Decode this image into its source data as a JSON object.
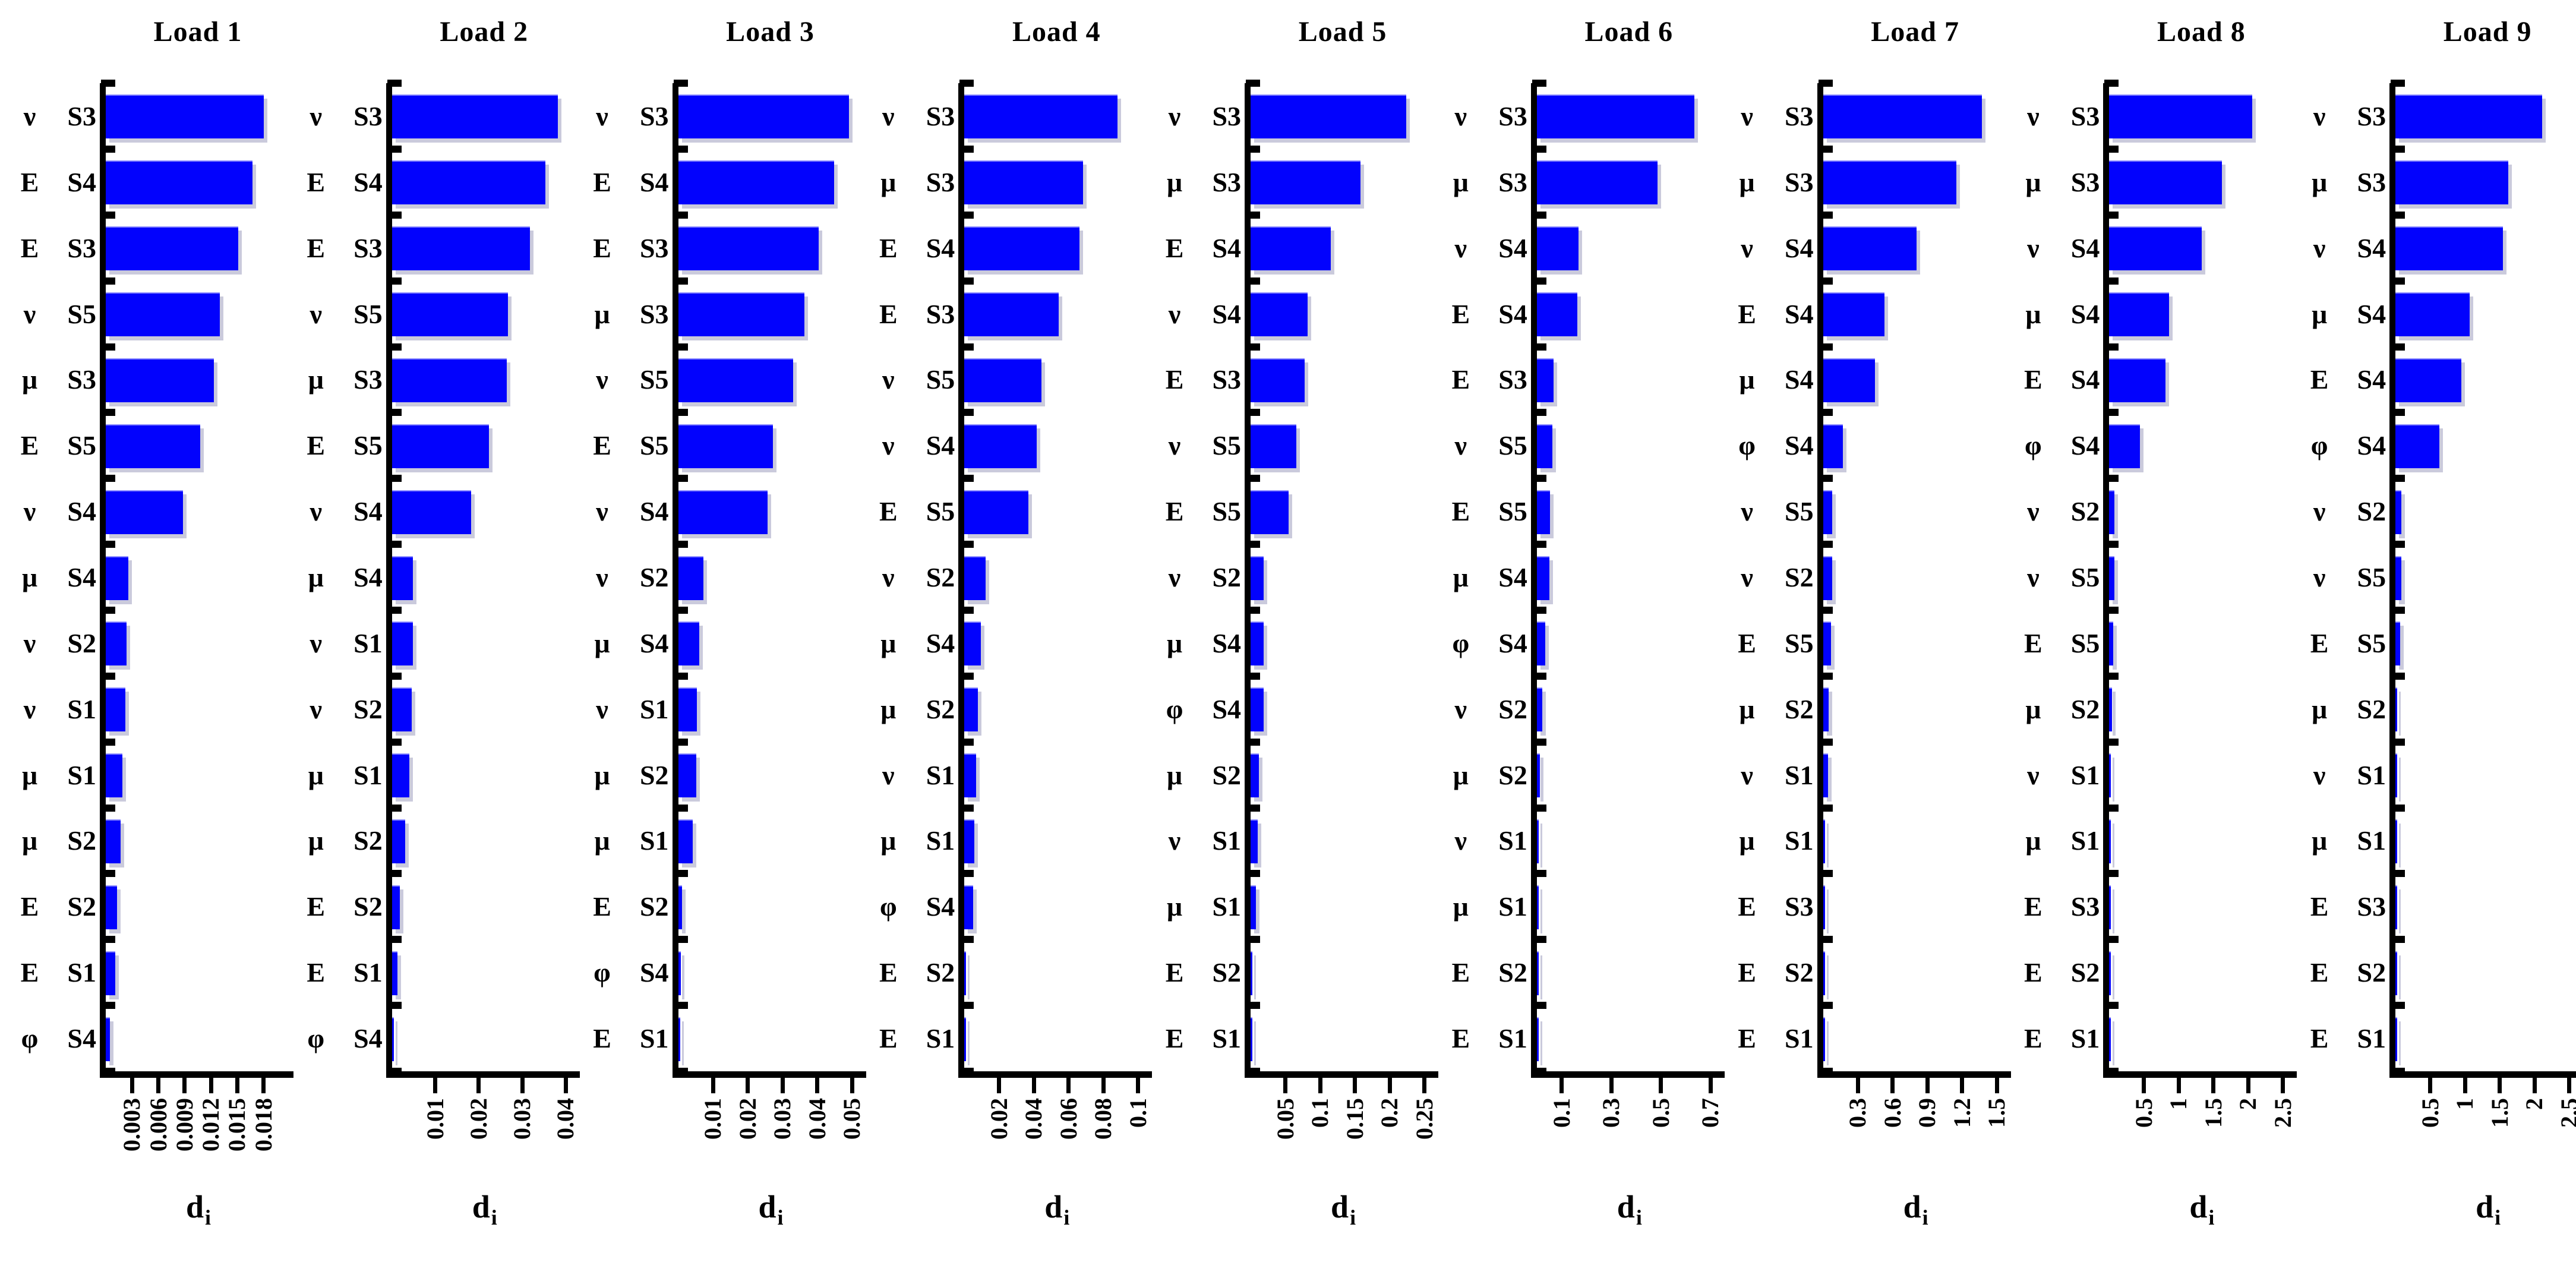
{
  "figure_title": "",
  "axis_color": "#000000",
  "bar_color": "#0202fd",
  "bar_shadow_color": "rgba(150,150,185,0.5)",
  "xlabel": {
    "base": "d",
    "sub": "i"
  },
  "chart_data": {
    "type": "bar",
    "orientation": "horizontal",
    "grid": false,
    "legend": false,
    "value_axis_label": "d_i",
    "panels": [
      {
        "title": "Load 1",
        "xlim": [
          0,
          0.021
        ],
        "xticks": [
          {
            "label": "0.003",
            "value": 0.003
          },
          {
            "label": "0.006",
            "value": 0.006
          },
          {
            "label": "0.009",
            "value": 0.009
          },
          {
            "label": "0.012",
            "value": 0.012
          },
          {
            "label": "0.015",
            "value": 0.015
          },
          {
            "label": "0.018",
            "value": 0.018
          }
        ],
        "bars": [
          {
            "param": "ν",
            "site": "S3",
            "value": 0.018
          },
          {
            "param": "E",
            "site": "S4",
            "value": 0.0167
          },
          {
            "param": "E",
            "site": "S3",
            "value": 0.0151
          },
          {
            "param": "ν",
            "site": "S5",
            "value": 0.013
          },
          {
            "param": "μ",
            "site": "S3",
            "value": 0.0123
          },
          {
            "param": "E",
            "site": "S5",
            "value": 0.0108
          },
          {
            "param": "ν",
            "site": "S4",
            "value": 0.0088
          },
          {
            "param": "μ",
            "site": "S4",
            "value": 0.0026
          },
          {
            "param": "ν",
            "site": "S2",
            "value": 0.0024
          },
          {
            "param": "ν",
            "site": "S1",
            "value": 0.0022
          },
          {
            "param": "μ",
            "site": "S1",
            "value": 0.0019
          },
          {
            "param": "μ",
            "site": "S2",
            "value": 0.0017
          },
          {
            "param": "E",
            "site": "S2",
            "value": 0.0013
          },
          {
            "param": "E",
            "site": "S1",
            "value": 0.0011
          },
          {
            "param": "φ",
            "site": "S4",
            "value": 0.0005
          }
        ]
      },
      {
        "title": "Load 2",
        "xlim": [
          0,
          0.0424
        ],
        "xticks": [
          {
            "label": "0.01",
            "value": 0.01
          },
          {
            "label": "0.02",
            "value": 0.02
          },
          {
            "label": "0.03",
            "value": 0.03
          },
          {
            "label": "0.04",
            "value": 0.04
          }
        ],
        "bars": [
          {
            "param": "ν",
            "site": "S3",
            "value": 0.0382
          },
          {
            "param": "E",
            "site": "S4",
            "value": 0.0353
          },
          {
            "param": "E",
            "site": "S3",
            "value": 0.0317
          },
          {
            "param": "ν",
            "site": "S5",
            "value": 0.0267
          },
          {
            "param": "μ",
            "site": "S3",
            "value": 0.0264
          },
          {
            "param": "E",
            "site": "S5",
            "value": 0.0223
          },
          {
            "param": "ν",
            "site": "S4",
            "value": 0.0182
          },
          {
            "param": "μ",
            "site": "S4",
            "value": 0.0048
          },
          {
            "param": "ν",
            "site": "S1",
            "value": 0.0048
          },
          {
            "param": "ν",
            "site": "S2",
            "value": 0.0046
          },
          {
            "param": "μ",
            "site": "S1",
            "value": 0.004
          },
          {
            "param": "μ",
            "site": "S2",
            "value": 0.0031
          },
          {
            "param": "E",
            "site": "S2",
            "value": 0.0018
          },
          {
            "param": "E",
            "site": "S1",
            "value": 0.0012
          },
          {
            "param": "φ",
            "site": "S4",
            "value": 0.0004
          }
        ]
      },
      {
        "title": "Load 3",
        "xlim": [
          0,
          0.053
        ],
        "xticks": [
          {
            "label": "0.01",
            "value": 0.01
          },
          {
            "label": "0.02",
            "value": 0.02
          },
          {
            "label": "0.03",
            "value": 0.03
          },
          {
            "label": "0.04",
            "value": 0.04
          },
          {
            "label": "0.05",
            "value": 0.05
          }
        ],
        "bars": [
          {
            "param": "ν",
            "site": "S3",
            "value": 0.0491
          },
          {
            "param": "E",
            "site": "S4",
            "value": 0.0448
          },
          {
            "param": "E",
            "site": "S3",
            "value": 0.0404
          },
          {
            "param": "μ",
            "site": "S3",
            "value": 0.0364
          },
          {
            "param": "ν",
            "site": "S5",
            "value": 0.033
          },
          {
            "param": "E",
            "site": "S5",
            "value": 0.0273
          },
          {
            "param": "ν",
            "site": "S4",
            "value": 0.0257
          },
          {
            "param": "ν",
            "site": "S2",
            "value": 0.0072
          },
          {
            "param": "μ",
            "site": "S4",
            "value": 0.006
          },
          {
            "param": "ν",
            "site": "S1",
            "value": 0.0053
          },
          {
            "param": "μ",
            "site": "S2",
            "value": 0.0052
          },
          {
            "param": "μ",
            "site": "S1",
            "value": 0.0042
          },
          {
            "param": "E",
            "site": "S2",
            "value": 0.0011
          },
          {
            "param": "φ",
            "site": "S4",
            "value": 0.0008
          },
          {
            "param": "E",
            "site": "S1",
            "value": 0.0003
          }
        ]
      },
      {
        "title": "Load 4",
        "xlim": [
          0,
          0.106
        ],
        "xticks": [
          {
            "label": "0.02",
            "value": 0.02
          },
          {
            "label": "0.04",
            "value": 0.04
          },
          {
            "label": "0.06",
            "value": 0.06
          },
          {
            "label": "0.08",
            "value": 0.08
          },
          {
            "label": "0.1",
            "value": 0.1
          }
        ],
        "bars": [
          {
            "param": "ν",
            "site": "S3",
            "value": 0.0882
          },
          {
            "param": "μ",
            "site": "S3",
            "value": 0.0684
          },
          {
            "param": "E",
            "site": "S4",
            "value": 0.0664
          },
          {
            "param": "E",
            "site": "S3",
            "value": 0.0543
          },
          {
            "param": "ν",
            "site": "S5",
            "value": 0.0443
          },
          {
            "param": "ν",
            "site": "S4",
            "value": 0.0416
          },
          {
            "param": "E",
            "site": "S5",
            "value": 0.0369
          },
          {
            "param": "ν",
            "site": "S2",
            "value": 0.0123
          },
          {
            "param": "μ",
            "site": "S4",
            "value": 0.0095
          },
          {
            "param": "μ",
            "site": "S2",
            "value": 0.0078
          },
          {
            "param": "ν",
            "site": "S1",
            "value": 0.0067
          },
          {
            "param": "μ",
            "site": "S1",
            "value": 0.0056
          },
          {
            "param": "φ",
            "site": "S4",
            "value": 0.005
          },
          {
            "param": "E",
            "site": "S2",
            "value": 0.0006
          },
          {
            "param": "E",
            "site": "S1",
            "value": 0.0003
          }
        ]
      },
      {
        "title": "Load 5",
        "xlim": [
          0,
          0.265
        ],
        "xticks": [
          {
            "label": "0.05",
            "value": 0.05
          },
          {
            "label": "0.1",
            "value": 0.1
          },
          {
            "label": "0.15",
            "value": 0.15
          },
          {
            "label": "0.2",
            "value": 0.2
          },
          {
            "label": "0.25",
            "value": 0.25
          }
        ],
        "bars": [
          {
            "param": "ν",
            "site": "S3",
            "value": 0.224
          },
          {
            "param": "μ",
            "site": "S3",
            "value": 0.158
          },
          {
            "param": "E",
            "site": "S4",
            "value": 0.115
          },
          {
            "param": "ν",
            "site": "S4",
            "value": 0.082
          },
          {
            "param": "E",
            "site": "S3",
            "value": 0.078
          },
          {
            "param": "ν",
            "site": "S5",
            "value": 0.066
          },
          {
            "param": "E",
            "site": "S5",
            "value": 0.055
          },
          {
            "param": "ν",
            "site": "S2",
            "value": 0.019
          },
          {
            "param": "μ",
            "site": "S4",
            "value": 0.019
          },
          {
            "param": "φ",
            "site": "S4",
            "value": 0.019
          },
          {
            "param": "μ",
            "site": "S2",
            "value": 0.012
          },
          {
            "param": "ν",
            "site": "S1",
            "value": 0.01
          },
          {
            "param": "μ",
            "site": "S1",
            "value": 0.008
          },
          {
            "param": "E",
            "site": "S2",
            "value": 0.002
          },
          {
            "param": "E",
            "site": "S1",
            "value": 0.001
          }
        ]
      },
      {
        "title": "Load 6",
        "xlim": [
          0,
          0.742
        ],
        "xticks": [
          {
            "label": "0.1",
            "value": 0.1
          },
          {
            "label": "0.3",
            "value": 0.3
          },
          {
            "label": "0.5",
            "value": 0.5
          },
          {
            "label": "0.7",
            "value": 0.7
          }
        ],
        "bars": [
          {
            "param": "ν",
            "site": "S3",
            "value": 0.634
          },
          {
            "param": "μ",
            "site": "S3",
            "value": 0.486
          },
          {
            "param": "ν",
            "site": "S4",
            "value": 0.167
          },
          {
            "param": "E",
            "site": "S4",
            "value": 0.164
          },
          {
            "param": "E",
            "site": "S3",
            "value": 0.068
          },
          {
            "param": "ν",
            "site": "S5",
            "value": 0.063
          },
          {
            "param": "E",
            "site": "S5",
            "value": 0.053
          },
          {
            "param": "μ",
            "site": "S4",
            "value": 0.051
          },
          {
            "param": "φ",
            "site": "S4",
            "value": 0.035
          },
          {
            "param": "ν",
            "site": "S2",
            "value": 0.023
          },
          {
            "param": "μ",
            "site": "S2",
            "value": 0.012
          },
          {
            "param": "ν",
            "site": "S1",
            "value": 0.008
          },
          {
            "param": "μ",
            "site": "S1",
            "value": 0.004
          },
          {
            "param": "E",
            "site": "S2",
            "value": 0.003
          },
          {
            "param": "E",
            "site": "S1",
            "value": 0.002
          }
        ]
      },
      {
        "title": "Load 7",
        "xlim": [
          0,
          1.59
        ],
        "xticks": [
          {
            "label": "0.3",
            "value": 0.3
          },
          {
            "label": "0.6",
            "value": 0.6
          },
          {
            "label": "0.9",
            "value": 0.9
          },
          {
            "label": "1.2",
            "value": 1.2
          },
          {
            "label": "1.5",
            "value": 1.5
          }
        ],
        "bars": [
          {
            "param": "ν",
            "site": "S3",
            "value": 1.37
          },
          {
            "param": "μ",
            "site": "S3",
            "value": 1.15
          },
          {
            "param": "ν",
            "site": "S4",
            "value": 0.81
          },
          {
            "param": "E",
            "site": "S4",
            "value": 0.53
          },
          {
            "param": "μ",
            "site": "S4",
            "value": 0.45
          },
          {
            "param": "φ",
            "site": "S4",
            "value": 0.17
          },
          {
            "param": "ν",
            "site": "S5",
            "value": 0.079
          },
          {
            "param": "ν",
            "site": "S2",
            "value": 0.079
          },
          {
            "param": "E",
            "site": "S5",
            "value": 0.067
          },
          {
            "param": "μ",
            "site": "S2",
            "value": 0.05
          },
          {
            "param": "ν",
            "site": "S1",
            "value": 0.042
          },
          {
            "param": "μ",
            "site": "S1",
            "value": 0.017
          },
          {
            "param": "E",
            "site": "S3",
            "value": 0.014
          },
          {
            "param": "E",
            "site": "S2",
            "value": 0.007
          },
          {
            "param": "E",
            "site": "S1",
            "value": 0.004
          }
        ]
      },
      {
        "title": "Load 8",
        "xlim": [
          0,
          2.65
        ],
        "xticks": [
          {
            "label": "0.5",
            "value": 0.5
          },
          {
            "label": "1",
            "value": 1
          },
          {
            "label": "1.5",
            "value": 1.5
          },
          {
            "label": "2",
            "value": 2
          },
          {
            "label": "2.5",
            "value": 2.5
          }
        ],
        "bars": [
          {
            "param": "ν",
            "site": "S3",
            "value": 2.06
          },
          {
            "param": "μ",
            "site": "S3",
            "value": 1.62
          },
          {
            "param": "ν",
            "site": "S4",
            "value": 1.33
          },
          {
            "param": "μ",
            "site": "S4",
            "value": 0.86
          },
          {
            "param": "E",
            "site": "S4",
            "value": 0.81
          },
          {
            "param": "φ",
            "site": "S4",
            "value": 0.44
          },
          {
            "param": "ν",
            "site": "S2",
            "value": 0.075
          },
          {
            "param": "ν",
            "site": "S5",
            "value": 0.075
          },
          {
            "param": "E",
            "site": "S5",
            "value": 0.056
          },
          {
            "param": "μ",
            "site": "S2",
            "value": 0.042
          },
          {
            "param": "ν",
            "site": "S1",
            "value": 0.023
          },
          {
            "param": "μ",
            "site": "S1",
            "value": 0.017
          },
          {
            "param": "E",
            "site": "S3",
            "value": 0.014
          },
          {
            "param": "E",
            "site": "S2",
            "value": 0.008
          },
          {
            "param": "E",
            "site": "S1",
            "value": 0.006
          }
        ]
      },
      {
        "title": "Load 9",
        "xlim": [
          0,
          2.65
        ],
        "xticks": [
          {
            "label": "0.5",
            "value": 0.5
          },
          {
            "label": "1",
            "value": 1
          },
          {
            "label": "1.5",
            "value": 1.5
          },
          {
            "label": "2",
            "value": 2
          },
          {
            "label": "2.5",
            "value": 2.5
          }
        ],
        "bars": [
          {
            "param": "ν",
            "site": "S3",
            "value": 2.11
          },
          {
            "param": "μ",
            "site": "S3",
            "value": 1.62
          },
          {
            "param": "ν",
            "site": "S4",
            "value": 1.55
          },
          {
            "param": "μ",
            "site": "S4",
            "value": 1.07
          },
          {
            "param": "E",
            "site": "S4",
            "value": 0.95
          },
          {
            "param": "φ",
            "site": "S4",
            "value": 0.63
          },
          {
            "param": "ν",
            "site": "S2",
            "value": 0.084
          },
          {
            "param": "ν",
            "site": "S5",
            "value": 0.084
          },
          {
            "param": "E",
            "site": "S5",
            "value": 0.07
          },
          {
            "param": "μ",
            "site": "S2",
            "value": 0.028
          },
          {
            "param": "ν",
            "site": "S1",
            "value": 0.023
          },
          {
            "param": "μ",
            "site": "S1",
            "value": 0.019
          },
          {
            "param": "E",
            "site": "S3",
            "value": 0.017
          },
          {
            "param": "E",
            "site": "S2",
            "value": 0.008
          },
          {
            "param": "E",
            "site": "S1",
            "value": 0.006
          }
        ]
      }
    ]
  }
}
